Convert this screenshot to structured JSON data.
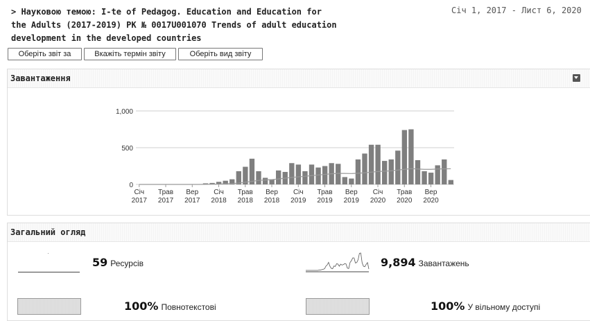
{
  "header": {
    "title": "> Науковою темою: I-te of Pedagog. Education and Education for the Adults (2017-2019) РК № 0017U001070 Trends of adult education development in the developed countries",
    "date_range": "Січ 1, 2017 - Лист 6, 2020"
  },
  "toolbar": {
    "select_report_label": "Оберіть звіт за",
    "report_term_label": "Вкажіть термін звіту",
    "report_type_label": "Оберіть вид звіту"
  },
  "downloads_panel": {
    "title": "Завантаження",
    "collapse_icon": "collapse-icon"
  },
  "overview_panel": {
    "title": "Загальний огляд",
    "resources_value": "59",
    "resources_label": "Ресурсів",
    "downloads_value": "9,894",
    "downloads_label": "Завантажень",
    "fulltext_value": "100%",
    "fulltext_label": "Повнотекстові",
    "open_access_value": "100%",
    "open_access_label": "У вільному доступі"
  },
  "chart_data": {
    "type": "bar",
    "title": "",
    "xlabel": "",
    "ylabel": "",
    "ylim": [
      0,
      1000
    ],
    "y_ticks": [
      "0",
      "500",
      "1,000"
    ],
    "x_ticks": [
      {
        "month": "Січ",
        "year": "2017",
        "index": 0
      },
      {
        "month": "Трав",
        "year": "2017",
        "index": 4
      },
      {
        "month": "Вер",
        "year": "2017",
        "index": 8
      },
      {
        "month": "Січ",
        "year": "2018",
        "index": 12
      },
      {
        "month": "Трав",
        "year": "2018",
        "index": 16
      },
      {
        "month": "Вер",
        "year": "2018",
        "index": 20
      },
      {
        "month": "Січ",
        "year": "2019",
        "index": 24
      },
      {
        "month": "Трав",
        "year": "2019",
        "index": 28
      },
      {
        "month": "Вер",
        "year": "2019",
        "index": 32
      },
      {
        "month": "Січ",
        "year": "2020",
        "index": 36
      },
      {
        "month": "Трав",
        "year": "2020",
        "index": 40
      },
      {
        "month": "Вер",
        "year": "2020",
        "index": 44
      }
    ],
    "series": [
      {
        "type": "bar",
        "values": [
          0,
          0,
          0,
          0,
          0,
          0,
          0,
          0,
          0,
          0,
          15,
          20,
          35,
          50,
          70,
          180,
          240,
          350,
          180,
          90,
          70,
          190,
          170,
          290,
          270,
          180,
          270,
          230,
          250,
          290,
          280,
          100,
          80,
          340,
          420,
          540,
          540,
          320,
          340,
          460,
          740,
          750,
          330,
          180,
          160,
          260,
          340,
          60
        ]
      },
      {
        "type": "line",
        "values": [
          0,
          0,
          0,
          0,
          0,
          0,
          0,
          0,
          0,
          0,
          1,
          3,
          5,
          8,
          12,
          18,
          30,
          42,
          55,
          60,
          65,
          75,
          85,
          95,
          103,
          110,
          120,
          128,
          136,
          145,
          150,
          150,
          148,
          152,
          158,
          167,
          176,
          180,
          185,
          195,
          205,
          215,
          210,
          205,
          205,
          210,
          212,
          213
        ]
      }
    ],
    "grid": true,
    "legend": "none",
    "bar_color": "#7f7f7f",
    "line_color": "#999999"
  },
  "colors": {
    "bar": "#7f7f7f",
    "line": "#999999",
    "grid": "#cfcfcf"
  }
}
